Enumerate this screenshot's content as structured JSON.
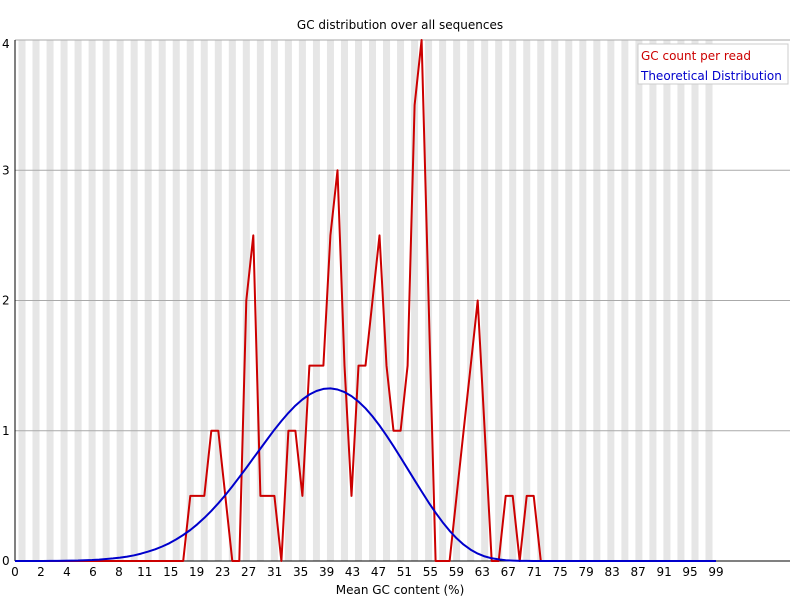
{
  "chart_data": {
    "type": "line",
    "title": "GC distribution over all sequences",
    "xlabel": "Mean GC content (%)",
    "ylabel": "",
    "ylim": [
      0,
      4
    ],
    "yticks": [
      "0",
      "1",
      "2",
      "3",
      "4"
    ],
    "xtick_labels": [
      "0",
      "2",
      "4",
      "6",
      "8",
      "11",
      "15",
      "19",
      "23",
      "27",
      "31",
      "35",
      "39",
      "43",
      "47",
      "51",
      "55",
      "59",
      "63",
      "67",
      "71",
      "75",
      "79",
      "83",
      "87",
      "91",
      "95",
      "99"
    ],
    "grid": "horizontal gridlines with alternating grey/white vertical bands",
    "legend": "top-right",
    "x": [
      0,
      1,
      2,
      3,
      4,
      5,
      6,
      7,
      8,
      9,
      10,
      11,
      12,
      13,
      14,
      15,
      16,
      17,
      18,
      19,
      20,
      21,
      22,
      23,
      24,
      25,
      26,
      27,
      28,
      29,
      30,
      31,
      32,
      33,
      34,
      35,
      36,
      37,
      38,
      39,
      40,
      41,
      42,
      43,
      44,
      45,
      46,
      47,
      48,
      49,
      50,
      51,
      52,
      53,
      54,
      55,
      56,
      57,
      58,
      59,
      60,
      61,
      62,
      63,
      64,
      65,
      66,
      67,
      68,
      69,
      70,
      71,
      72,
      73,
      74,
      75,
      76,
      77,
      78,
      79,
      80,
      81,
      82,
      83,
      84,
      85,
      86,
      87,
      88,
      89,
      90,
      91,
      92,
      93,
      94,
      95,
      96,
      97,
      98,
      99,
      100
    ],
    "series": [
      {
        "name": "GC count per read",
        "color": "#cc0000",
        "values": [
          0,
          0,
          0,
          0,
          0,
          0,
          0,
          0,
          0,
          0,
          0,
          0,
          0,
          0,
          0,
          0,
          0,
          0,
          0,
          0,
          0,
          0,
          0,
          0,
          0,
          0.5,
          0.5,
          0.5,
          1,
          1,
          0.5,
          0,
          0,
          2,
          2.5,
          0.5,
          0.5,
          0.5,
          0,
          1,
          1,
          0.5,
          1.5,
          1.5,
          1.5,
          2.5,
          3,
          1.5,
          0.5,
          1.5,
          1.5,
          2,
          2.5,
          1.5,
          1,
          1,
          1.5,
          3.5,
          4,
          2,
          0,
          0,
          0,
          0.5,
          1,
          1.5,
          2,
          1,
          0,
          0,
          0.5,
          0.5,
          0,
          0.5,
          0.5,
          0,
          0,
          0,
          0,
          0,
          0,
          0,
          0,
          0,
          0,
          0,
          0,
          0,
          0,
          0,
          0,
          0,
          0,
          0,
          0,
          0,
          0,
          0,
          0,
          0,
          0
        ]
      },
      {
        "name": "Theoretical Distribution",
        "color": "#0000cc",
        "values": [
          0.0,
          0.0,
          0.0,
          0.0,
          0.0,
          0.001,
          0.001,
          0.002,
          0.003,
          0.004,
          0.006,
          0.008,
          0.011,
          0.015,
          0.02,
          0.026,
          0.034,
          0.044,
          0.057,
          0.072,
          0.09,
          0.111,
          0.136,
          0.166,
          0.2,
          0.238,
          0.282,
          0.331,
          0.385,
          0.443,
          0.506,
          0.573,
          0.643,
          0.715,
          0.789,
          0.863,
          0.936,
          1.008,
          1.075,
          1.137,
          1.193,
          1.24,
          1.278,
          1.305,
          1.321,
          1.325,
          1.317,
          1.297,
          1.266,
          1.224,
          1.172,
          1.11,
          1.04,
          0.963,
          0.881,
          0.795,
          0.708,
          0.62,
          0.534,
          0.45,
          0.371,
          0.298,
          0.232,
          0.174,
          0.126,
          0.087,
          0.057,
          0.035,
          0.021,
          0.012,
          0.006,
          0.003,
          0.001,
          0.001,
          0,
          0,
          0,
          0,
          0,
          0,
          0,
          0,
          0,
          0,
          0,
          0,
          0,
          0,
          0,
          0,
          0,
          0,
          0,
          0,
          0,
          0,
          0,
          0,
          0,
          0,
          0
        ]
      }
    ]
  }
}
